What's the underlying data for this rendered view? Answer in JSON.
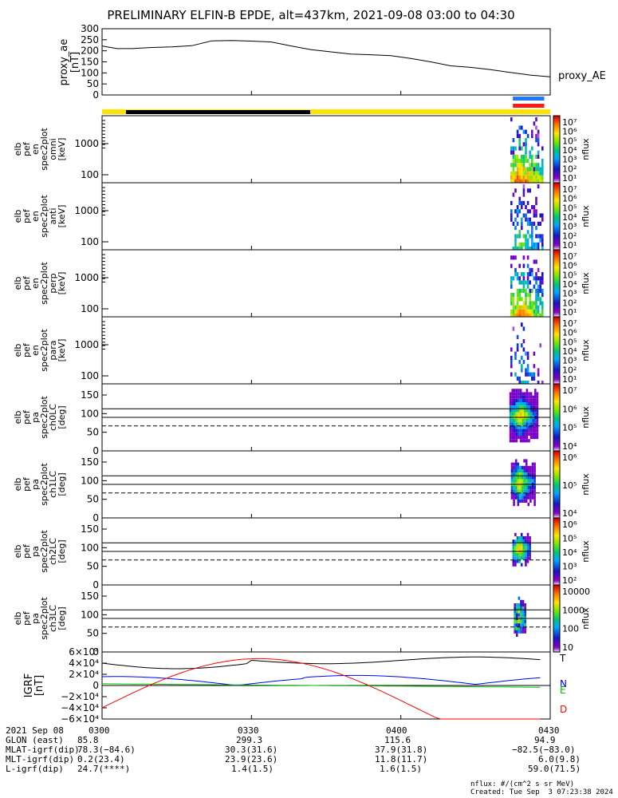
{
  "title": "PRELIMINARY ELFIN-B EPDE, alt=437km, 2021-09-08 03:00 to 04:30",
  "chart_data": [
    {
      "type": "line",
      "panel": "proxy_ae",
      "ylabel": [
        "proxy_ae",
        "[nT]"
      ],
      "yticks": [
        "300",
        "250",
        "200",
        "150",
        "100",
        "50",
        "0"
      ],
      "ylim": [
        0,
        300
      ],
      "legend": "proxy_AE",
      "x_minutes": [
        0,
        3,
        6,
        10,
        14,
        18,
        22,
        26,
        30,
        34,
        38,
        42,
        46,
        50,
        54,
        58,
        62,
        66,
        70,
        74,
        78,
        82,
        86,
        90
      ],
      "values": [
        222,
        210,
        210,
        215,
        218,
        223,
        245,
        247,
        244,
        240,
        222,
        205,
        195,
        185,
        182,
        178,
        165,
        150,
        132,
        125,
        115,
        102,
        90,
        82
      ]
    },
    {
      "type": "heatmap",
      "panels": [
        {
          "ylabel": [
            "elb",
            "pef",
            "en",
            "spec2plot",
            "omni",
            "[keV]"
          ],
          "yticks": [
            "1000",
            "100"
          ]
        },
        {
          "ylabel": [
            "elb",
            "pef",
            "en",
            "spec2plot",
            "anti",
            "[keV]"
          ],
          "yticks": [
            "1000",
            "100"
          ]
        },
        {
          "ylabel": [
            "elb",
            "pef",
            "en",
            "spec2plot",
            "perp",
            "[keV]"
          ],
          "yticks": [
            "1000",
            "100"
          ]
        },
        {
          "ylabel": [
            "elb",
            "pef",
            "en",
            "spec2plot",
            "para",
            "[keV]"
          ],
          "yticks": [
            "1000",
            "100"
          ]
        },
        {
          "ylabel": [
            "elb",
            "pef",
            "pa",
            "spec2plot",
            "ch0LC",
            "[deg]"
          ],
          "yticks": [
            "150",
            "100",
            "50",
            "0"
          ]
        },
        {
          "ylabel": [
            "elb",
            "pef",
            "pa",
            "spec2plot",
            "ch1LC",
            "[deg]"
          ],
          "yticks": [
            "150",
            "100",
            "50",
            "0"
          ]
        },
        {
          "ylabel": [
            "elb",
            "pef",
            "pa",
            "spec2plot",
            "ch2LC",
            "[deg]"
          ],
          "yticks": [
            "150",
            "100",
            "50",
            "0"
          ]
        },
        {
          "ylabel": [
            "elb",
            "pef",
            "pa",
            "spec2plot",
            "ch3LC",
            "[deg]"
          ],
          "yticks": [
            "150",
            "100",
            "50",
            "0"
          ]
        }
      ],
      "colorbars": [
        {
          "labels": [
            "10⁷",
            "10⁶",
            "10⁵",
            "10⁴",
            "10³",
            "10²",
            "10¹"
          ],
          "unit": "nflux"
        },
        {
          "labels": [
            "10⁷",
            "10⁶",
            "10⁵",
            "10⁴",
            "10³",
            "10²",
            "10¹"
          ],
          "unit": "nflux"
        },
        {
          "labels": [
            "10⁷",
            "10⁶",
            "10⁵",
            "10⁴",
            "10³",
            "10²",
            "10¹"
          ],
          "unit": "nflux"
        },
        {
          "labels": [
            "10⁷",
            "10⁶",
            "10⁵",
            "10⁴",
            "10³",
            "10²",
            "10¹"
          ],
          "unit": "nflux"
        },
        {
          "labels": [
            "10⁷",
            "10⁶",
            "10⁵",
            "10⁴"
          ],
          "unit": "nflux"
        },
        {
          "labels": [
            "10⁶",
            "10⁵",
            "10⁴"
          ],
          "unit": "nflux"
        },
        {
          "labels": [
            "10⁶",
            "10⁵",
            "10⁴",
            "10³",
            "10²"
          ],
          "unit": "nflux"
        },
        {
          "labels": [
            "10000",
            "1000",
            "100",
            "10"
          ],
          "unit": "nflux"
        }
      ]
    },
    {
      "type": "line",
      "panel": "IGRF",
      "ylabel": [
        "IGRF",
        "[nT]"
      ],
      "yticks": [
        "6×10⁴",
        "4×10⁴",
        "2×10⁴",
        "0",
        "−2×10⁴",
        "−4×10⁴",
        "−6×10⁴"
      ],
      "ylim": [
        -60000,
        60000
      ],
      "series": [
        {
          "name": "T",
          "color": "#000000"
        },
        {
          "name": "N",
          "color": "#0000ff"
        },
        {
          "name": "E",
          "color": "#00c000"
        },
        {
          "name": "D",
          "color": "#ff0000"
        }
      ]
    }
  ],
  "xaxis": {
    "ticks": [
      "0300",
      "0330",
      "0400",
      "0430"
    ],
    "date_label": "2021 Sep 08",
    "rows": [
      {
        "label": "GLON (east)",
        "first": "85.8",
        "values": [
          "299.3",
          "115.6",
          "94.9"
        ]
      },
      {
        "label": "MLAT-igrf(dip)",
        "first": "78.3(−84.6)",
        "values": [
          "30.3(31.6)",
          "37.9(31.8)",
          "−82.5(−83.0)"
        ]
      },
      {
        "label": "MLT-igrf(dip)",
        "first": "0.2(23.4)",
        "values": [
          "23.9(23.6)",
          "11.8(11.7)",
          "6.0(9.8)"
        ]
      },
      {
        "label": "L-igrf(dip)",
        "first": "24.7(****)",
        "values": [
          "1.4(1.5)",
          "1.6(1.5)",
          "59.0(71.5)"
        ]
      }
    ]
  },
  "footer": {
    "units": "nflux: #/(cm^2 s sr MeV)",
    "created": "Created: Tue Sep  3 07:23:38 2024"
  },
  "colors": {
    "yellow": "#ffe400",
    "black": "#000000",
    "blue": "#1e78ff",
    "red": "#ff1a1a"
  }
}
